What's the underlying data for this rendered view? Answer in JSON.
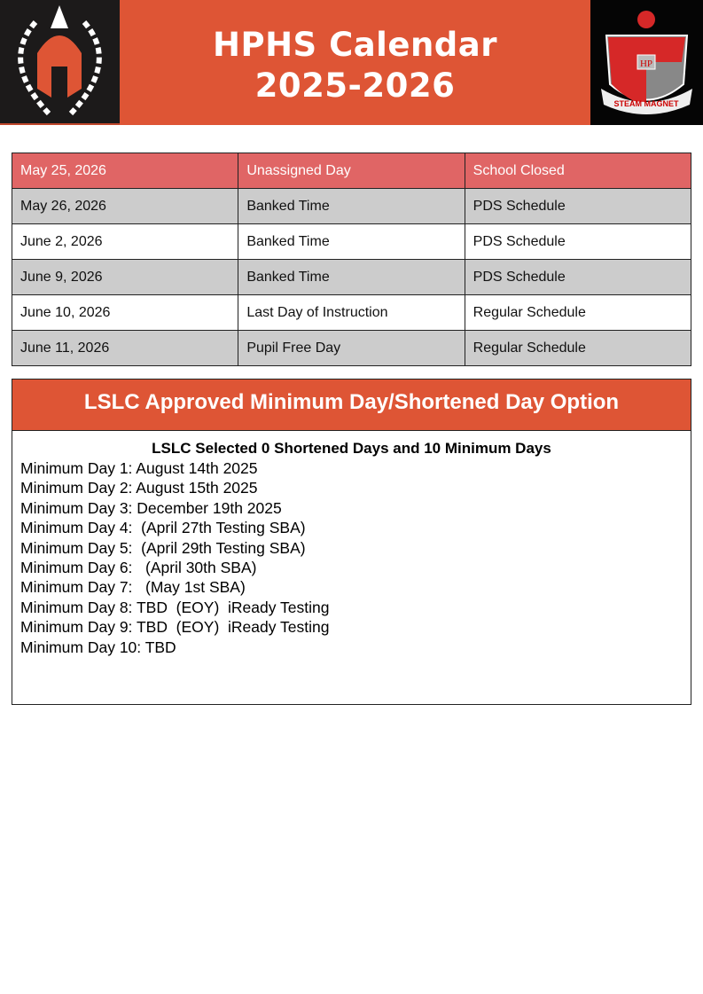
{
  "header": {
    "title_line1": "HPHS Calendar",
    "title_line2": "2025-2026",
    "right_logo_text": "STEAM MAGNET",
    "right_logo_initials": "HP",
    "brand_color": "#de5535"
  },
  "calendar_rows": [
    {
      "date": "May 25, 2026",
      "event": "Unassigned Day",
      "schedule": "School Closed"
    },
    {
      "date": "May 26, 2026",
      "event": "Banked Time",
      "schedule": "PDS Schedule"
    },
    {
      "date": "June 2, 2026",
      "event": "Banked Time",
      "schedule": "PDS Schedule"
    },
    {
      "date": "June 9, 2026",
      "event": "Banked Time",
      "schedule": "PDS Schedule"
    },
    {
      "date": "June 10, 2026",
      "event": "Last Day of Instruction",
      "schedule": "Regular Schedule"
    },
    {
      "date": "June 11, 2026",
      "event": "Pupil Free Day",
      "schedule": "Regular Schedule"
    }
  ],
  "minimum_days": {
    "heading": "LSLC Approved Minimum Day/Shortened Day Option",
    "subheading": "LSLC Selected 0 Shortened Days and 10 Minimum Days",
    "items": [
      "Minimum Day 1: August 14th 2025",
      "Minimum Day 2: August 15th 2025",
      "Minimum Day 3: December 19th 2025",
      "Minimum Day 4:  (April 27th Testing SBA)",
      "Minimum Day 5:  (April 29th Testing SBA)",
      "Minimum Day 6:   (April 30th SBA)",
      "Minimum Day 7:   (May 1st SBA)",
      "Minimum Day 8: TBD  (EOY)  iReady Testing",
      "Minimum Day 9: TBD  (EOY)  iReady Testing",
      "Minimum Day 10: TBD"
    ]
  }
}
